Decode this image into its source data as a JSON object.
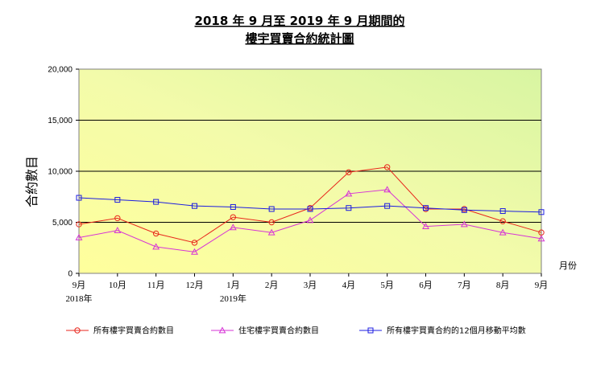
{
  "chart_data": {
    "type": "line",
    "title": [
      "2018 年 9 月至 2019 年 9 月期間的",
      "樓宇買賣合約統計圖"
    ],
    "ylabel": "合約數目",
    "xlabel": "月份",
    "ylim": [
      0,
      20000
    ],
    "yticks": [
      0,
      5000,
      10000,
      15000,
      20000
    ],
    "ytick_labels": [
      "0",
      "5,000",
      "10,000",
      "15,000",
      "20,000"
    ],
    "gridlines": [
      5000,
      10000,
      15000
    ],
    "categories": [
      "9月",
      "10月",
      "11月",
      "12月",
      "1月",
      "2月",
      "3月",
      "4月",
      "5月",
      "6月",
      "7月",
      "8月",
      "9月"
    ],
    "year_labels": [
      {
        "index": 0,
        "text": "2018年"
      },
      {
        "index": 4,
        "text": "2019年"
      }
    ],
    "series": [
      {
        "name": "所有樓宇買賣合約數目",
        "color": "#e8261c",
        "marker": "circle",
        "values": [
          4800,
          5400,
          3900,
          3000,
          5500,
          5000,
          6400,
          9900,
          10400,
          6300,
          6300,
          5100,
          4000
        ]
      },
      {
        "name": "住宅樓宇買賣合約數目",
        "color": "#d633d6",
        "marker": "triangle",
        "values": [
          3500,
          4200,
          2600,
          2100,
          4500,
          4000,
          5200,
          7800,
          8200,
          4600,
          4800,
          4000,
          3400
        ]
      },
      {
        "name": "所有樓宇買賣合約的12個月移動平均數",
        "color": "#1c1ce0",
        "marker": "square",
        "values": [
          7400,
          7200,
          7000,
          6600,
          6500,
          6300,
          6300,
          6400,
          6600,
          6400,
          6200,
          6100,
          6000
        ]
      }
    ],
    "legend_position": "bottom",
    "colors": {
      "grad_start": "#ffff9c",
      "grad_end": "#d8f5a2",
      "grid": "#000000"
    }
  }
}
